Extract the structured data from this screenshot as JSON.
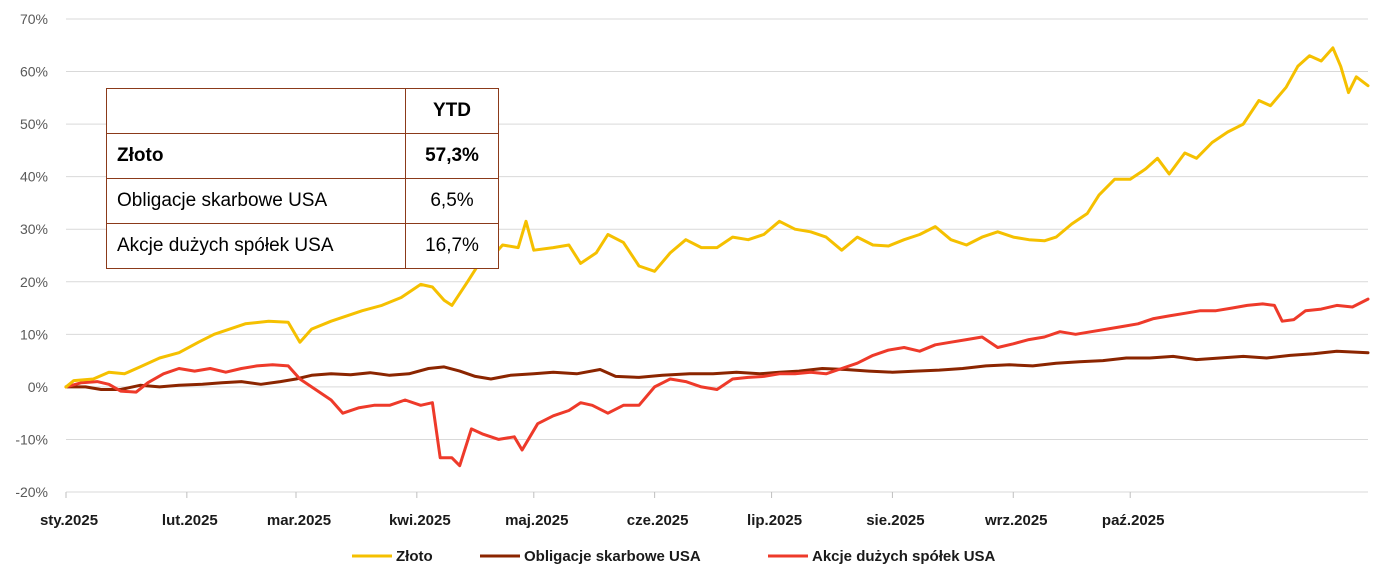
{
  "chart_data": {
    "type": "line",
    "ylim": [
      -20,
      70
    ],
    "y_ticks": [
      "70%",
      "60%",
      "50%",
      "40%",
      "30%",
      "20%",
      "10%",
      "0%",
      "-10%",
      "-20%"
    ],
    "x_ticks": [
      "sty.2025",
      "lut.2025",
      "mar.2025",
      "kwi.2025",
      "maj.2025",
      "cze.2025",
      "lip.2025",
      "sie.2025",
      "wrz.2025",
      "paź.2025"
    ],
    "grid": "horizontal",
    "legend_position": "bottom",
    "series": [
      {
        "name": "Złoto",
        "color": "#F5C000",
        "points": [
          [
            "2025-01-01",
            0
          ],
          [
            "2025-01-03",
            1.2
          ],
          [
            "2025-01-08",
            1.5
          ],
          [
            "2025-01-12",
            2.8
          ],
          [
            "2025-01-16",
            2.5
          ],
          [
            "2025-01-20",
            3.8
          ],
          [
            "2025-01-25",
            5.5
          ],
          [
            "2025-01-30",
            6.5
          ],
          [
            "2025-02-04",
            8.5
          ],
          [
            "2025-02-08",
            10
          ],
          [
            "2025-02-12",
            11
          ],
          [
            "2025-02-16",
            12
          ],
          [
            "2025-02-22",
            12.5
          ],
          [
            "2025-02-27",
            12.3
          ],
          [
            "2025-03-02",
            8.5
          ],
          [
            "2025-03-05",
            11
          ],
          [
            "2025-03-10",
            12.5
          ],
          [
            "2025-03-14",
            13.5
          ],
          [
            "2025-03-18",
            14.5
          ],
          [
            "2025-03-23",
            15.5
          ],
          [
            "2025-03-28",
            17
          ],
          [
            "2025-04-02",
            19.5
          ],
          [
            "2025-04-05",
            19
          ],
          [
            "2025-04-08",
            16.5
          ],
          [
            "2025-04-10",
            15.5
          ],
          [
            "2025-04-14",
            20
          ],
          [
            "2025-04-17",
            23.5
          ],
          [
            "2025-04-20",
            24.5
          ],
          [
            "2025-04-23",
            27
          ],
          [
            "2025-04-27",
            26.5
          ],
          [
            "2025-04-29",
            31.5
          ],
          [
            "2025-05-01",
            26
          ],
          [
            "2025-05-06",
            26.5
          ],
          [
            "2025-05-10",
            27
          ],
          [
            "2025-05-13",
            23.5
          ],
          [
            "2025-05-17",
            25.5
          ],
          [
            "2025-05-20",
            29
          ],
          [
            "2025-05-24",
            27.5
          ],
          [
            "2025-05-28",
            23
          ],
          [
            "2025-06-01",
            22
          ],
          [
            "2025-06-05",
            25.5
          ],
          [
            "2025-06-09",
            28
          ],
          [
            "2025-06-13",
            26.5
          ],
          [
            "2025-06-17",
            26.5
          ],
          [
            "2025-06-21",
            28.5
          ],
          [
            "2025-06-25",
            28
          ],
          [
            "2025-06-29",
            29
          ],
          [
            "2025-07-03",
            31.5
          ],
          [
            "2025-07-07",
            30
          ],
          [
            "2025-07-11",
            29.5
          ],
          [
            "2025-07-15",
            28.5
          ],
          [
            "2025-07-19",
            26
          ],
          [
            "2025-07-23",
            28.5
          ],
          [
            "2025-07-27",
            27
          ],
          [
            "2025-07-31",
            26.8
          ],
          [
            "2025-08-04",
            28
          ],
          [
            "2025-08-08",
            29
          ],
          [
            "2025-08-12",
            30.5
          ],
          [
            "2025-08-16",
            28
          ],
          [
            "2025-08-20",
            27
          ],
          [
            "2025-08-24",
            28.5
          ],
          [
            "2025-08-28",
            29.5
          ],
          [
            "2025-09-01",
            28.5
          ],
          [
            "2025-09-05",
            28
          ],
          [
            "2025-09-09",
            27.8
          ],
          [
            "2025-09-12",
            28.5
          ],
          [
            "2025-09-16",
            31
          ],
          [
            "2025-09-20",
            33
          ],
          [
            "2025-09-23",
            36.5
          ],
          [
            "2025-09-27",
            39.5
          ],
          [
            "2025-10-01",
            39.5
          ],
          [
            "2025-10-05",
            41.5
          ],
          [
            "2025-10-08",
            43.5
          ],
          [
            "2025-10-11",
            40.5
          ],
          [
            "2025-10-15",
            44.5
          ],
          [
            "2025-10-18",
            43.5
          ],
          [
            "2025-10-22",
            46.5
          ],
          [
            "2025-10-26",
            48.5
          ],
          [
            "2025-10-30",
            50
          ],
          [
            "2025-11-03",
            54.5
          ],
          [
            "2025-11-06",
            53.5
          ],
          [
            "2025-11-10",
            57
          ],
          [
            "2025-11-13",
            61
          ],
          [
            "2025-11-16",
            63
          ],
          [
            "2025-11-19",
            62
          ],
          [
            "2025-11-22",
            64.5
          ],
          [
            "2025-11-24",
            61
          ],
          [
            "2025-11-26",
            56
          ],
          [
            "2025-11-28",
            59
          ],
          [
            "2025-12-01",
            57.3
          ]
        ]
      },
      {
        "name": "Obligacje skarbowe USA",
        "color": "#8B2500",
        "points": [
          [
            "2025-01-01",
            0
          ],
          [
            "2025-01-06",
            0
          ],
          [
            "2025-01-10",
            -0.5
          ],
          [
            "2025-01-15",
            -0.5
          ],
          [
            "2025-01-20",
            0.3
          ],
          [
            "2025-01-25",
            0
          ],
          [
            "2025-01-30",
            0.3
          ],
          [
            "2025-02-05",
            0.5
          ],
          [
            "2025-02-10",
            0.8
          ],
          [
            "2025-02-15",
            1
          ],
          [
            "2025-02-20",
            0.5
          ],
          [
            "2025-02-25",
            1
          ],
          [
            "2025-03-01",
            1.5
          ],
          [
            "2025-03-05",
            2.2
          ],
          [
            "2025-03-10",
            2.5
          ],
          [
            "2025-03-15",
            2.3
          ],
          [
            "2025-03-20",
            2.7
          ],
          [
            "2025-03-25",
            2.2
          ],
          [
            "2025-03-30",
            2.5
          ],
          [
            "2025-04-04",
            3.5
          ],
          [
            "2025-04-08",
            3.8
          ],
          [
            "2025-04-12",
            3
          ],
          [
            "2025-04-16",
            2
          ],
          [
            "2025-04-20",
            1.5
          ],
          [
            "2025-04-25",
            2.2
          ],
          [
            "2025-05-01",
            2.5
          ],
          [
            "2025-05-06",
            2.8
          ],
          [
            "2025-05-12",
            2.5
          ],
          [
            "2025-05-18",
            3.3
          ],
          [
            "2025-05-22",
            2
          ],
          [
            "2025-05-28",
            1.8
          ],
          [
            "2025-06-03",
            2.2
          ],
          [
            "2025-06-10",
            2.5
          ],
          [
            "2025-06-16",
            2.5
          ],
          [
            "2025-06-22",
            2.8
          ],
          [
            "2025-06-28",
            2.5
          ],
          [
            "2025-07-03",
            2.8
          ],
          [
            "2025-07-08",
            3
          ],
          [
            "2025-07-14",
            3.5
          ],
          [
            "2025-07-20",
            3.3
          ],
          [
            "2025-07-26",
            3
          ],
          [
            "2025-08-01",
            2.8
          ],
          [
            "2025-08-07",
            3
          ],
          [
            "2025-08-13",
            3.2
          ],
          [
            "2025-08-19",
            3.5
          ],
          [
            "2025-08-25",
            4
          ],
          [
            "2025-08-31",
            4.2
          ],
          [
            "2025-09-06",
            4
          ],
          [
            "2025-09-12",
            4.5
          ],
          [
            "2025-09-18",
            4.8
          ],
          [
            "2025-09-24",
            5
          ],
          [
            "2025-09-30",
            5.5
          ],
          [
            "2025-10-06",
            5.5
          ],
          [
            "2025-10-12",
            5.8
          ],
          [
            "2025-10-18",
            5.2
          ],
          [
            "2025-10-24",
            5.5
          ],
          [
            "2025-10-30",
            5.8
          ],
          [
            "2025-11-05",
            5.5
          ],
          [
            "2025-11-11",
            6
          ],
          [
            "2025-11-17",
            6.3
          ],
          [
            "2025-11-23",
            6.8
          ],
          [
            "2025-12-01",
            6.5
          ]
        ]
      },
      {
        "name": "Akcje dużych spółek USA",
        "color": "#EE3A2A",
        "points": [
          [
            "2025-01-01",
            0
          ],
          [
            "2025-01-05",
            0.8
          ],
          [
            "2025-01-09",
            1
          ],
          [
            "2025-01-12",
            0.5
          ],
          [
            "2025-01-15",
            -0.8
          ],
          [
            "2025-01-19",
            -1
          ],
          [
            "2025-01-22",
            0.8
          ],
          [
            "2025-01-26",
            2.5
          ],
          [
            "2025-01-30",
            3.5
          ],
          [
            "2025-02-03",
            3
          ],
          [
            "2025-02-07",
            3.5
          ],
          [
            "2025-02-11",
            2.8
          ],
          [
            "2025-02-15",
            3.5
          ],
          [
            "2025-02-19",
            4
          ],
          [
            "2025-02-23",
            4.2
          ],
          [
            "2025-02-27",
            4
          ],
          [
            "2025-03-02",
            1.5
          ],
          [
            "2025-03-06",
            -0.5
          ],
          [
            "2025-03-10",
            -2.5
          ],
          [
            "2025-03-13",
            -5
          ],
          [
            "2025-03-17",
            -4
          ],
          [
            "2025-03-21",
            -3.5
          ],
          [
            "2025-03-25",
            -3.5
          ],
          [
            "2025-03-29",
            -2.5
          ],
          [
            "2025-04-02",
            -3.5
          ],
          [
            "2025-04-05",
            -3
          ],
          [
            "2025-04-07",
            -13.5
          ],
          [
            "2025-04-10",
            -13.5
          ],
          [
            "2025-04-12",
            -15
          ],
          [
            "2025-04-15",
            -8
          ],
          [
            "2025-04-18",
            -9
          ],
          [
            "2025-04-22",
            -10
          ],
          [
            "2025-04-26",
            -9.5
          ],
          [
            "2025-04-28",
            -12
          ],
          [
            "2025-05-02",
            -7
          ],
          [
            "2025-05-06",
            -5.5
          ],
          [
            "2025-05-10",
            -4.5
          ],
          [
            "2025-05-13",
            -3
          ],
          [
            "2025-05-16",
            -3.5
          ],
          [
            "2025-05-20",
            -5
          ],
          [
            "2025-05-24",
            -3.5
          ],
          [
            "2025-05-28",
            -3.5
          ],
          [
            "2025-06-01",
            0
          ],
          [
            "2025-06-05",
            1.5
          ],
          [
            "2025-06-09",
            1
          ],
          [
            "2025-06-13",
            0
          ],
          [
            "2025-06-17",
            -0.5
          ],
          [
            "2025-06-21",
            1.5
          ],
          [
            "2025-06-25",
            1.8
          ],
          [
            "2025-06-29",
            2
          ],
          [
            "2025-07-03",
            2.5
          ],
          [
            "2025-07-07",
            2.5
          ],
          [
            "2025-07-11",
            2.8
          ],
          [
            "2025-07-15",
            2.5
          ],
          [
            "2025-07-19",
            3.5
          ],
          [
            "2025-07-23",
            4.5
          ],
          [
            "2025-07-27",
            6
          ],
          [
            "2025-07-31",
            7
          ],
          [
            "2025-08-04",
            7.5
          ],
          [
            "2025-08-08",
            6.8
          ],
          [
            "2025-08-12",
            8
          ],
          [
            "2025-08-16",
            8.5
          ],
          [
            "2025-08-20",
            9
          ],
          [
            "2025-08-24",
            9.5
          ],
          [
            "2025-08-28",
            7.5
          ],
          [
            "2025-09-01",
            8.2
          ],
          [
            "2025-09-05",
            9
          ],
          [
            "2025-09-09",
            9.5
          ],
          [
            "2025-09-13",
            10.5
          ],
          [
            "2025-09-17",
            10
          ],
          [
            "2025-09-21",
            10.5
          ],
          [
            "2025-09-25",
            11
          ],
          [
            "2025-09-29",
            11.5
          ],
          [
            "2025-10-03",
            12
          ],
          [
            "2025-10-07",
            13
          ],
          [
            "2025-10-11",
            13.5
          ],
          [
            "2025-10-15",
            14
          ],
          [
            "2025-10-19",
            14.5
          ],
          [
            "2025-10-23",
            14.5
          ],
          [
            "2025-10-27",
            15
          ],
          [
            "2025-10-31",
            15.5
          ],
          [
            "2025-11-04",
            15.8
          ],
          [
            "2025-11-07",
            15.5
          ],
          [
            "2025-11-09",
            12.5
          ],
          [
            "2025-11-12",
            12.8
          ],
          [
            "2025-11-15",
            14.5
          ],
          [
            "2025-11-19",
            14.8
          ],
          [
            "2025-11-23",
            15.5
          ],
          [
            "2025-11-27",
            15.2
          ],
          [
            "2025-12-01",
            16.7
          ]
        ]
      }
    ]
  },
  "ytd_table": {
    "header": "YTD",
    "rows": [
      {
        "name": "Złoto",
        "value": "57,3%"
      },
      {
        "name": "Obligacje skarbowe USA",
        "value": "6,5%"
      },
      {
        "name": "Akcje dużych spółek USA",
        "value": "16,7%"
      }
    ]
  }
}
